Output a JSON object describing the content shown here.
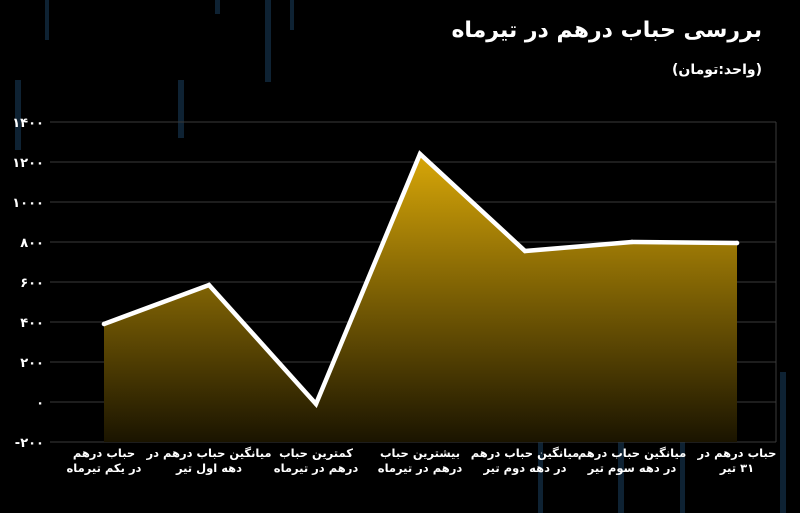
{
  "title": "بررسی حباب درهم در تیرماه",
  "unit": "(واحد:تومان)",
  "chart_data": {
    "type": "area",
    "categories": [
      [
        "حباب درهم",
        "در یکم تیرماه"
      ],
      [
        "میانگین حباب درهم در",
        "دهه اول تیر"
      ],
      [
        "کمترین حباب",
        "درهم در تیرماه"
      ],
      [
        "بیشترین حباب",
        "درهم در تیرماه"
      ],
      [
        "میانگین حباب درهم",
        "در دهه دوم تیر"
      ],
      [
        "میانگین حباب درهم",
        "در دهه سوم تیر"
      ],
      [
        "حباب درهم در",
        "۳۱ تیر"
      ]
    ],
    "values": [
      390,
      585,
      -10,
      1240,
      755,
      800,
      795
    ],
    "ylim": [
      -200,
      1400
    ],
    "yticks": [
      -200,
      0,
      200,
      400,
      600,
      800,
      1000,
      1200,
      1400
    ],
    "ytick_labels": [
      "-۲۰۰",
      "۰",
      "۲۰۰",
      "۴۰۰",
      "۶۰۰",
      "۸۰۰",
      "۱۰۰۰",
      "۱۲۰۰",
      "۱۴۰۰"
    ],
    "grid": true,
    "colors": {
      "line": "#ffffff",
      "fill_top": "#d8a708",
      "fill_bottom": "#1a1400",
      "grid": "#3a3a3a"
    }
  }
}
